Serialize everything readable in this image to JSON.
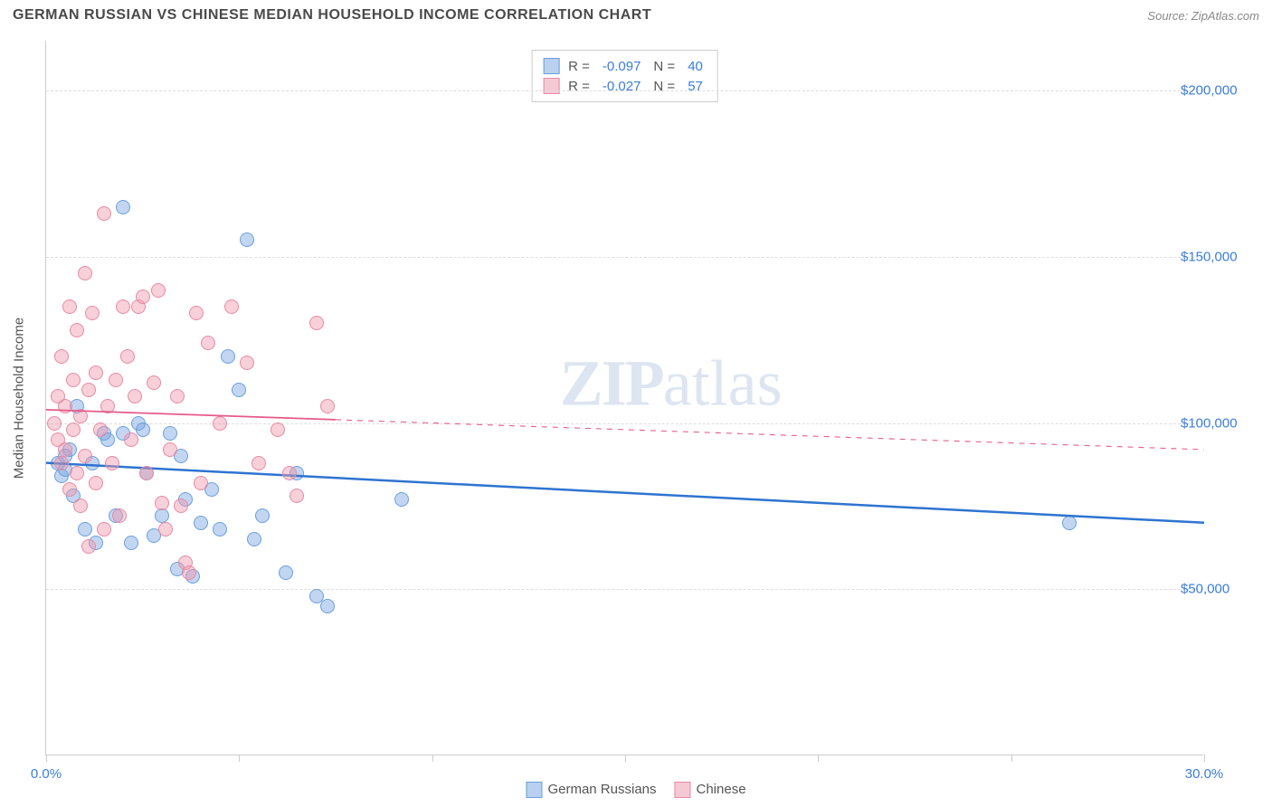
{
  "header": {
    "title": "GERMAN RUSSIAN VS CHINESE MEDIAN HOUSEHOLD INCOME CORRELATION CHART",
    "source_label": "Source:",
    "source_name": "ZipAtlas.com"
  },
  "chart": {
    "type": "scatter",
    "ylabel": "Median Household Income",
    "background_color": "#ffffff",
    "grid_color": "#dddddd",
    "axis_color": "#cccccc",
    "tick_label_color": "#3b7dd8",
    "text_color": "#555555",
    "xlim": [
      0,
      30
    ],
    "ylim": [
      0,
      215000
    ],
    "xtick_positions": [
      0,
      5,
      10,
      15,
      20,
      25,
      30
    ],
    "xtick_labels": {
      "0": "0.0%",
      "30": "30.0%"
    },
    "ytick_positions": [
      50000,
      100000,
      150000,
      200000
    ],
    "ytick_labels": [
      "$50,000",
      "$100,000",
      "$150,000",
      "$200,000"
    ],
    "marker_radius": 8,
    "series": [
      {
        "name": "German Russians",
        "color_fill": "rgba(120, 165, 225, 0.45)",
        "color_stroke": "#6a9fe0",
        "swatch_fill": "#b9d0ee",
        "swatch_border": "#6a9fe0",
        "regression_color": "#2e74d0",
        "regression": {
          "x1": 0,
          "y1": 88000,
          "x2": 30,
          "y2": 70000,
          "solid_until_x": 30,
          "width": 2.5
        },
        "stats": {
          "R": "-0.097",
          "N": "40"
        },
        "points": [
          [
            0.3,
            88000
          ],
          [
            0.4,
            84000
          ],
          [
            0.5,
            90000
          ],
          [
            0.5,
            86000
          ],
          [
            0.6,
            92000
          ],
          [
            0.7,
            78000
          ],
          [
            0.8,
            105000
          ],
          [
            1.0,
            68000
          ],
          [
            1.2,
            88000
          ],
          [
            1.3,
            64000
          ],
          [
            1.5,
            97000
          ],
          [
            1.6,
            95000
          ],
          [
            1.8,
            72000
          ],
          [
            2.0,
            165000
          ],
          [
            2.0,
            97000
          ],
          [
            2.2,
            64000
          ],
          [
            2.4,
            100000
          ],
          [
            2.5,
            98000
          ],
          [
            2.6,
            85000
          ],
          [
            2.8,
            66000
          ],
          [
            3.0,
            72000
          ],
          [
            3.2,
            97000
          ],
          [
            3.4,
            56000
          ],
          [
            3.5,
            90000
          ],
          [
            3.6,
            77000
          ],
          [
            3.8,
            54000
          ],
          [
            4.0,
            70000
          ],
          [
            4.3,
            80000
          ],
          [
            4.5,
            68000
          ],
          [
            4.7,
            120000
          ],
          [
            5.0,
            110000
          ],
          [
            5.2,
            155000
          ],
          [
            5.4,
            65000
          ],
          [
            5.6,
            72000
          ],
          [
            6.2,
            55000
          ],
          [
            6.5,
            85000
          ],
          [
            7.0,
            48000
          ],
          [
            7.3,
            45000
          ],
          [
            9.2,
            77000
          ],
          [
            26.5,
            70000
          ]
        ]
      },
      {
        "name": "Chinese",
        "color_fill": "rgba(240, 150, 170, 0.45)",
        "color_stroke": "#e88aa3",
        "swatch_fill": "#f5c9d4",
        "swatch_border": "#e88aa3",
        "regression_color": "#e65a88",
        "regression": {
          "x1": 0,
          "y1": 104000,
          "x2": 30,
          "y2": 92000,
          "solid_until_x": 7.5,
          "width": 1.8
        },
        "stats": {
          "R": "-0.027",
          "N": "57"
        },
        "points": [
          [
            0.2,
            100000
          ],
          [
            0.3,
            95000
          ],
          [
            0.3,
            108000
          ],
          [
            0.4,
            88000
          ],
          [
            0.4,
            120000
          ],
          [
            0.5,
            105000
          ],
          [
            0.5,
            92000
          ],
          [
            0.6,
            135000
          ],
          [
            0.6,
            80000
          ],
          [
            0.7,
            113000
          ],
          [
            0.7,
            98000
          ],
          [
            0.8,
            85000
          ],
          [
            0.8,
            128000
          ],
          [
            0.9,
            75000
          ],
          [
            0.9,
            102000
          ],
          [
            1.0,
            145000
          ],
          [
            1.0,
            90000
          ],
          [
            1.1,
            110000
          ],
          [
            1.1,
            63000
          ],
          [
            1.2,
            133000
          ],
          [
            1.3,
            115000
          ],
          [
            1.3,
            82000
          ],
          [
            1.4,
            98000
          ],
          [
            1.5,
            68000
          ],
          [
            1.5,
            163000
          ],
          [
            1.6,
            105000
          ],
          [
            1.7,
            88000
          ],
          [
            1.8,
            113000
          ],
          [
            1.9,
            72000
          ],
          [
            2.0,
            135000
          ],
          [
            2.1,
            120000
          ],
          [
            2.2,
            95000
          ],
          [
            2.3,
            108000
          ],
          [
            2.4,
            135000
          ],
          [
            2.5,
            138000
          ],
          [
            2.6,
            85000
          ],
          [
            2.8,
            112000
          ],
          [
            2.9,
            140000
          ],
          [
            3.0,
            76000
          ],
          [
            3.1,
            68000
          ],
          [
            3.2,
            92000
          ],
          [
            3.4,
            108000
          ],
          [
            3.5,
            75000
          ],
          [
            3.6,
            58000
          ],
          [
            3.7,
            55000
          ],
          [
            3.9,
            133000
          ],
          [
            4.0,
            82000
          ],
          [
            4.2,
            124000
          ],
          [
            4.5,
            100000
          ],
          [
            4.8,
            135000
          ],
          [
            5.2,
            118000
          ],
          [
            5.5,
            88000
          ],
          [
            6.0,
            98000
          ],
          [
            6.3,
            85000
          ],
          [
            6.5,
            78000
          ],
          [
            7.0,
            130000
          ],
          [
            7.3,
            105000
          ]
        ]
      }
    ],
    "watermark": {
      "text_bold": "ZIP",
      "text_light": "atlas"
    }
  },
  "legend": {
    "stat_label_R": "R =",
    "stat_label_N": "N ="
  }
}
